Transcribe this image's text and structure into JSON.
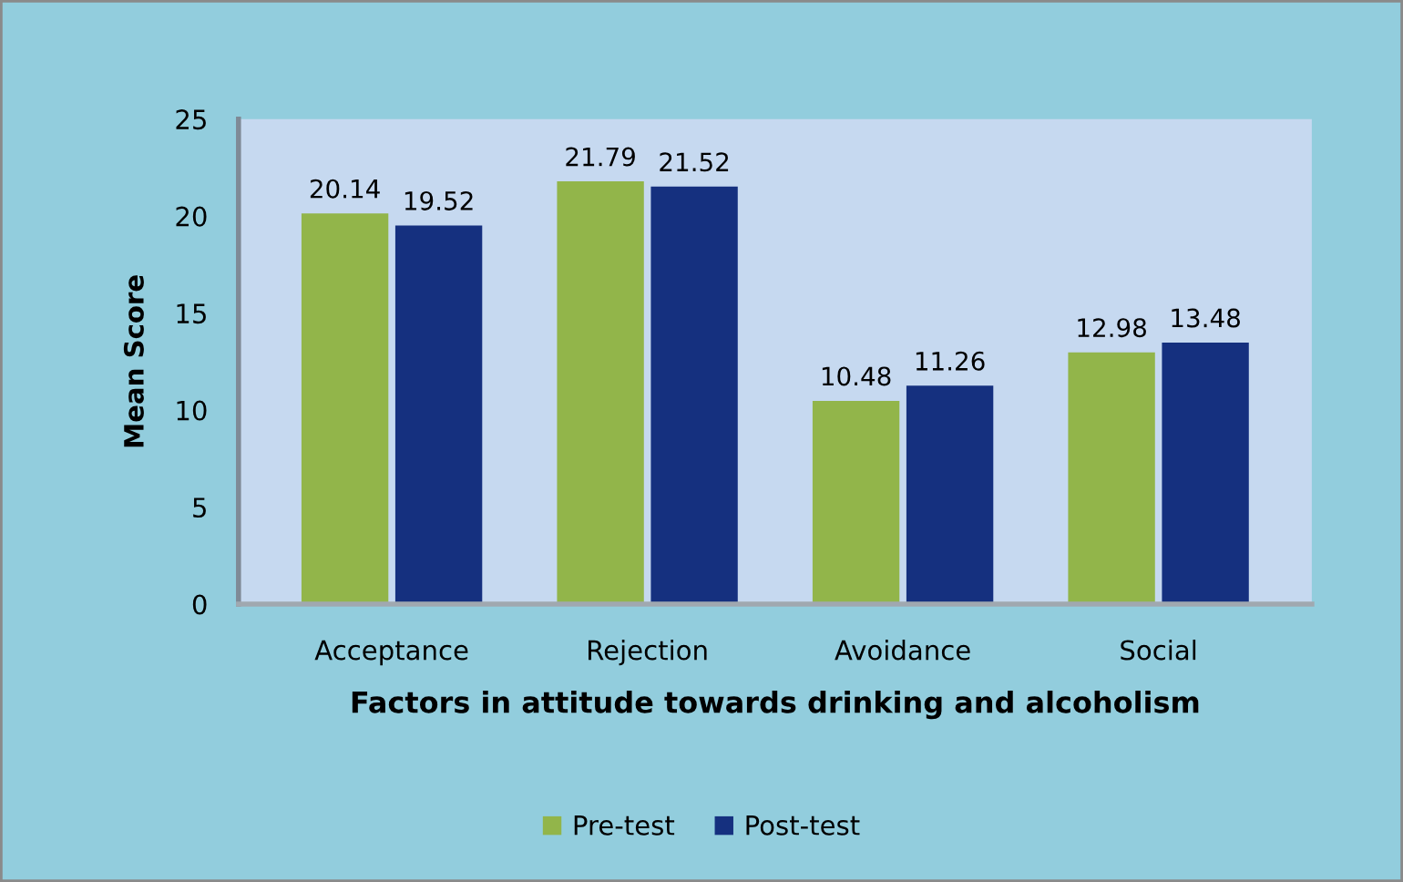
{
  "chart_data": {
    "type": "bar",
    "categories": [
      "Acceptance",
      "Rejection",
      "Avoidance",
      "Social"
    ],
    "xlabel": "Factors in attitude towards drinking and alcoholism",
    "ylabel": "Mean Score",
    "series": [
      {
        "name": "Pre-test",
        "color": "#92b54a",
        "values": [
          20.14,
          21.79,
          10.48,
          12.98
        ]
      },
      {
        "name": "Post-test",
        "color": "#15307f",
        "values": [
          19.52,
          21.52,
          11.26,
          13.48
        ]
      }
    ],
    "ylim": [
      0,
      25
    ],
    "yticks": [
      0,
      5,
      10,
      15,
      20,
      25
    ],
    "data_labels": true,
    "legend": "bottom",
    "grid": false
  }
}
